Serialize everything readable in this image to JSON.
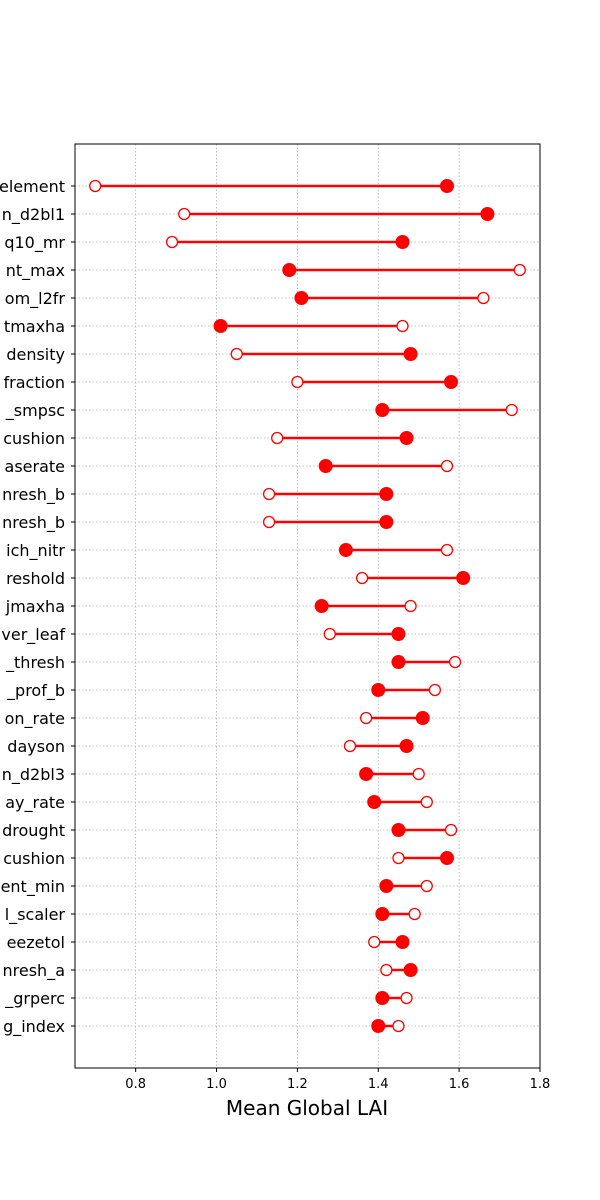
{
  "chart_data": {
    "type": "dumbbell",
    "xlabel": "Mean Global LAI",
    "xlim": [
      0.65,
      1.8
    ],
    "xticks": [
      "0.8",
      "1.0",
      "1.2",
      "1.4",
      "1.6",
      "1.8"
    ],
    "grid": true,
    "color": "#ff0000",
    "categories": [
      "element",
      "n_d2bl1",
      "q10_mr",
      "nt_max",
      "om_l2fr",
      "tmaxha",
      "density",
      "fraction",
      "_smpsc",
      "cushion",
      "aserate",
      "nresh_b",
      "nresh_b",
      "ich_nitr",
      "reshold",
      "jmaxha",
      "ver_leaf",
      "_thresh",
      "_prof_b",
      "on_rate",
      "dayson",
      "n_d2bl3",
      "ay_rate",
      "drought",
      "cushion",
      "ent_min",
      "l_scaler",
      "eezetol",
      "nresh_a",
      "_grperc",
      "g_index"
    ],
    "series": [
      {
        "marker": "filled",
        "values": [
          1.57,
          1.67,
          1.46,
          1.18,
          1.21,
          1.01,
          1.48,
          1.58,
          1.41,
          1.47,
          1.27,
          1.42,
          1.42,
          1.32,
          1.61,
          1.26,
          1.45,
          1.45,
          1.4,
          1.51,
          1.47,
          1.37,
          1.39,
          1.45,
          1.57,
          1.42,
          1.41,
          1.46,
          1.48,
          1.41,
          1.4
        ]
      },
      {
        "marker": "open",
        "values": [
          0.7,
          0.92,
          0.89,
          1.75,
          1.66,
          1.46,
          1.05,
          1.2,
          1.73,
          1.15,
          1.57,
          1.13,
          1.13,
          1.57,
          1.36,
          1.48,
          1.28,
          1.59,
          1.54,
          1.37,
          1.33,
          1.5,
          1.52,
          1.58,
          1.45,
          1.52,
          1.49,
          1.39,
          1.42,
          1.47,
          1.45
        ]
      }
    ]
  }
}
